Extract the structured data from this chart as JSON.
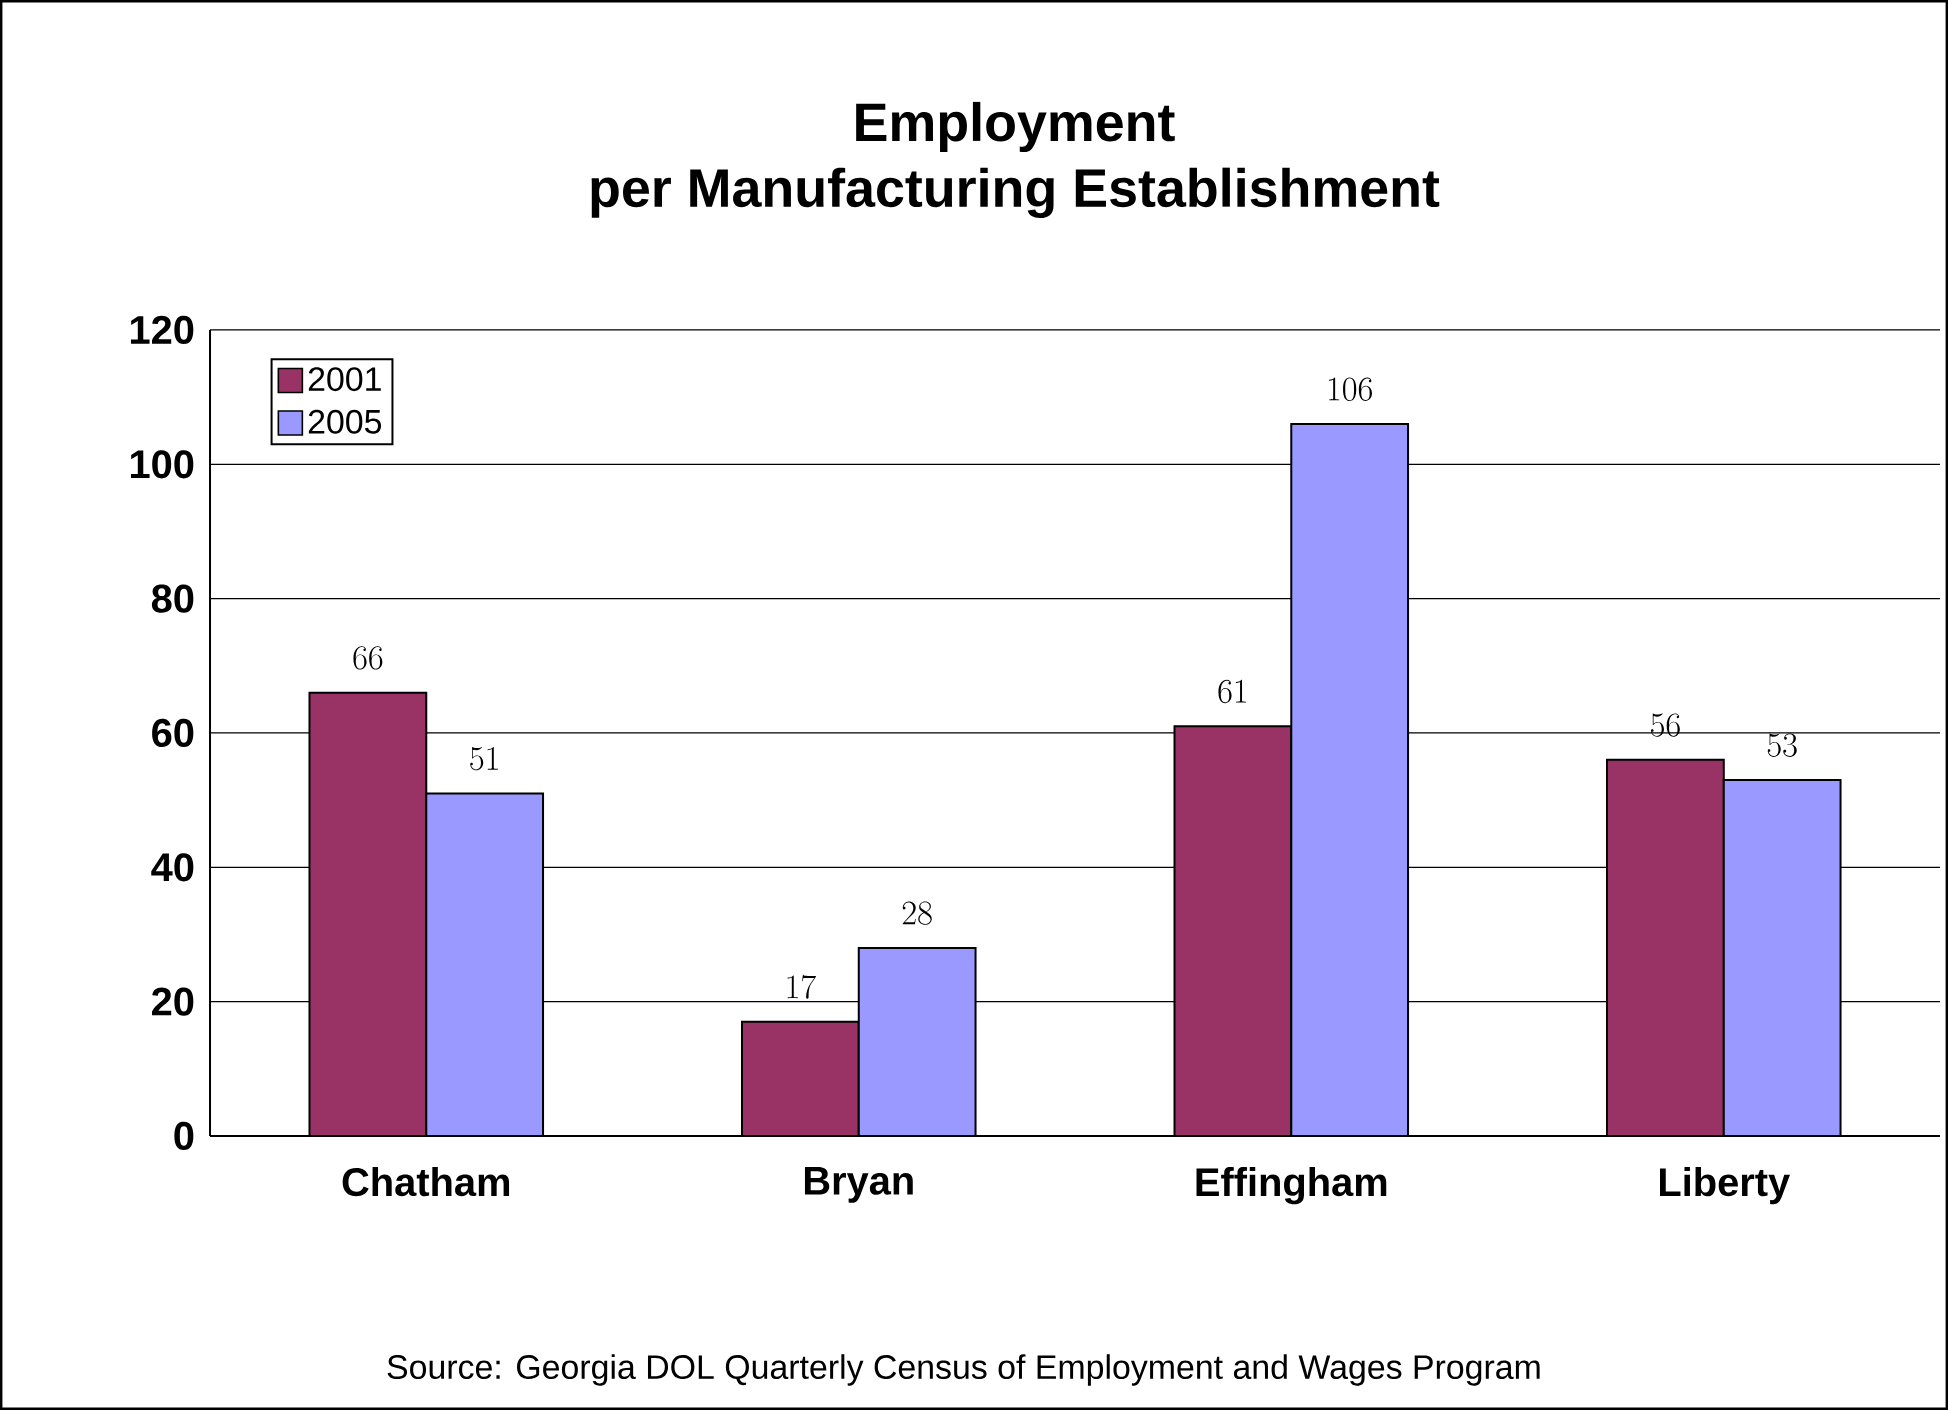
{
  "chart_data": {
    "type": "bar",
    "title": "Employment\nper Manufacturing Establishment",
    "categories": [
      "Chatham",
      "Bryan",
      "Effingham",
      "Liberty"
    ],
    "series": [
      {
        "name": "2001",
        "color": "#993366",
        "values": [
          66,
          17,
          61,
          56
        ]
      },
      {
        "name": "2005",
        "color": "#9999ff",
        "values": [
          51,
          28,
          106,
          53
        ]
      }
    ],
    "ylim": [
      0,
      120
    ],
    "yticks": [
      0,
      20,
      40,
      60,
      80,
      100,
      120
    ],
    "grid": "y",
    "legend": "top left",
    "data_labels": true,
    "annotations": [
      "Source: Georgia DOL Quarterly Census of Employment and Wages Program"
    ]
  }
}
